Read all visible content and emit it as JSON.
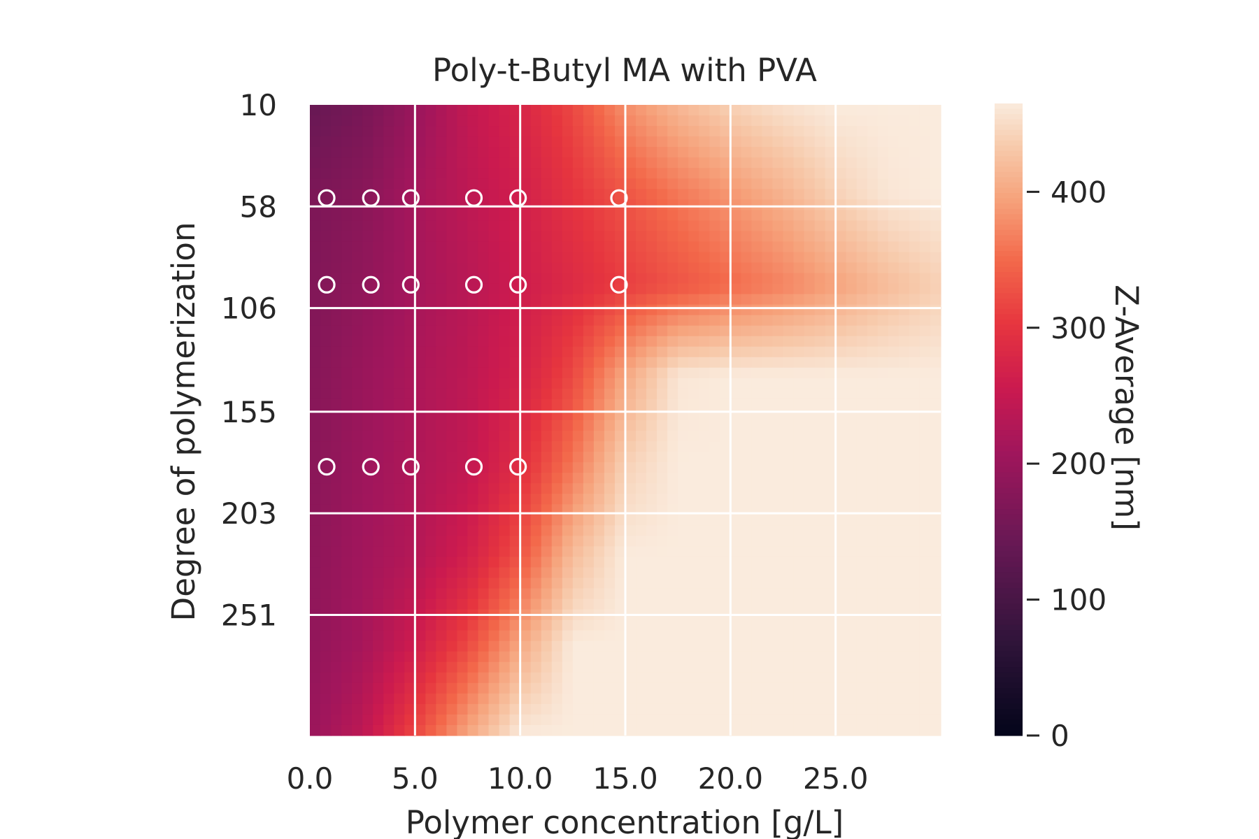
{
  "chart_data": {
    "type": "heatmap",
    "title": "Poly-t-Butyl MA with PVA",
    "xlabel": "Polymer concentration [g/L]",
    "ylabel": "Degree of polymerization",
    "xlim": [
      0.0,
      30.0
    ],
    "ylim": [
      10,
      308
    ],
    "y_inverted": true,
    "x_ticks": [
      0.0,
      5.0,
      10.0,
      15.0,
      20.0,
      25.0
    ],
    "x_tick_labels": [
      "0.0",
      "5.0",
      "10.0",
      "15.0",
      "20.0",
      "25.0"
    ],
    "y_ticks": [
      10,
      58,
      106,
      155,
      203,
      251
    ],
    "y_tick_labels": [
      "10",
      "58",
      "106",
      "155",
      "203",
      "251"
    ],
    "grid": true,
    "colormap": "rocket",
    "colorbar": {
      "label": "Z-Average [nm]",
      "range": [
        0,
        465
      ],
      "ticks": [
        0,
        100,
        200,
        300,
        400
      ],
      "tick_labels": [
        "0",
        "100",
        "200",
        "300",
        "400"
      ]
    },
    "heatmap_rows_dp": [
      10,
      53,
      95,
      138,
      180,
      223,
      265,
      308
    ],
    "heatmap_cols_conc": [
      0.0,
      2.5,
      5.0,
      7.5,
      10.0,
      12.5,
      15.0,
      17.5,
      20.0,
      22.5,
      25.0,
      27.5,
      30.0
    ],
    "z_average_nm": [
      [
        140,
        160,
        200,
        245,
        275,
        320,
        380,
        415,
        440,
        455,
        465,
        465,
        465
      ],
      [
        165,
        180,
        215,
        240,
        265,
        300,
        330,
        360,
        385,
        410,
        440,
        460,
        465
      ],
      [
        170,
        190,
        215,
        235,
        260,
        285,
        310,
        330,
        350,
        370,
        395,
        420,
        440
      ],
      [
        175,
        200,
        222,
        240,
        270,
        320,
        400,
        460,
        465,
        465,
        465,
        465,
        465
      ],
      [
        180,
        205,
        225,
        245,
        290,
        360,
        440,
        465,
        465,
        465,
        465,
        465,
        465
      ],
      [
        185,
        210,
        230,
        265,
        330,
        420,
        465,
        465,
        465,
        465,
        465,
        465,
        465
      ],
      [
        190,
        215,
        260,
        320,
        400,
        465,
        465,
        465,
        465,
        465,
        465,
        465,
        465
      ],
      [
        200,
        240,
        320,
        400,
        465,
        465,
        465,
        465,
        465,
        465,
        465,
        465,
        465
      ]
    ],
    "measured_points": [
      {
        "x": 0.8,
        "y": 54
      },
      {
        "x": 2.9,
        "y": 54
      },
      {
        "x": 4.8,
        "y": 54
      },
      {
        "x": 7.8,
        "y": 54
      },
      {
        "x": 9.9,
        "y": 54
      },
      {
        "x": 14.7,
        "y": 54
      },
      {
        "x": 0.8,
        "y": 95
      },
      {
        "x": 2.9,
        "y": 95
      },
      {
        "x": 4.8,
        "y": 95
      },
      {
        "x": 7.8,
        "y": 95
      },
      {
        "x": 9.9,
        "y": 95
      },
      {
        "x": 14.7,
        "y": 95
      },
      {
        "x": 0.8,
        "y": 181
      },
      {
        "x": 2.9,
        "y": 181
      },
      {
        "x": 4.8,
        "y": 181
      },
      {
        "x": 7.8,
        "y": 181
      },
      {
        "x": 9.9,
        "y": 181
      }
    ]
  }
}
